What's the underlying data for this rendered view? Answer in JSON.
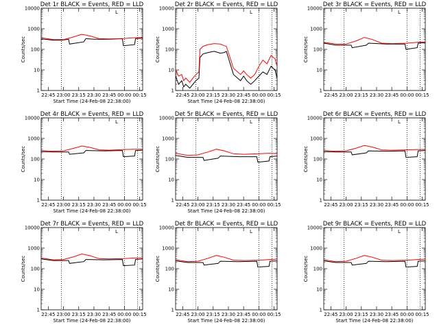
{
  "chart_data": [
    {
      "type": "line",
      "title": "Det 1r BLACK = Events, RED = LLD",
      "xlabel": "Start Time (24-Feb-08 22:38:00)",
      "ylabel": "Counts/sec",
      "y_scale": "log",
      "ylim": [
        1,
        10000
      ],
      "xlim": [
        "22:38",
        "00:18"
      ],
      "x_ticks": [
        "22:45",
        "23:00",
        "23:15",
        "23:30",
        "23:45",
        "00:00",
        "00:15"
      ],
      "y_ticks": [
        "1",
        "10",
        "100",
        "1000",
        "10000"
      ],
      "markers": [
        "22:58",
        "00:00",
        "00:13"
      ],
      "flag_label": "L",
      "series": [
        {
          "color": "#000000",
          "x": [
            "22:38",
            "22:50",
            "22:58",
            "23:05",
            "23:06",
            "23:20",
            "23:22",
            "23:30",
            "23:45",
            "23:58",
            "23:59",
            "00:10",
            "00:11",
            "00:18"
          ],
          "values": [
            320,
            280,
            280,
            310,
            180,
            230,
            330,
            310,
            310,
            330,
            150,
            170,
            330,
            350
          ]
        },
        {
          "color": "#ff0000",
          "x": [
            "22:38",
            "22:50",
            "23:00",
            "23:10",
            "23:18",
            "23:26",
            "23:35",
            "23:45",
            "00:00",
            "00:10",
            "00:18"
          ],
          "values": [
            370,
            300,
            300,
            400,
            540,
            450,
            330,
            320,
            340,
            370,
            380
          ]
        }
      ]
    },
    {
      "type": "line",
      "title": "Det 2r BLACK = Events, RED = LLD",
      "xlabel": "Start Time (24-Feb-08 22:38:00)",
      "ylabel": "Counts/sec",
      "y_scale": "log",
      "ylim": [
        1,
        10000
      ],
      "xlim": [
        "22:38",
        "00:18"
      ],
      "x_ticks": [
        "22:45",
        "23:00",
        "23:15",
        "23:30",
        "23:45",
        "00:00",
        "00:15"
      ],
      "y_ticks": [
        "1",
        "10",
        "100",
        "1000",
        "10000"
      ],
      "markers": [
        "22:58",
        "00:00",
        "00:13"
      ],
      "flag_label": "L",
      "series": [
        {
          "color": "#000000",
          "x": [
            "22:38",
            "22:41",
            "22:44",
            "22:46",
            "22:48",
            "22:52",
            "22:55",
            "22:58",
            "23:01",
            "23:02",
            "23:05",
            "23:10",
            "23:16",
            "23:22",
            "23:26",
            "23:28",
            "23:35",
            "23:42",
            "23:45",
            "23:48",
            "23:52",
            "23:56",
            "24:00",
            "24:04",
            "24:08",
            "24:12",
            "24:16",
            "24:18"
          ],
          "values": [
            5,
            2,
            3,
            1.5,
            2,
            1.3,
            2,
            3,
            4,
            40,
            60,
            70,
            80,
            65,
            70,
            80,
            6,
            3,
            5,
            3,
            2,
            3,
            5,
            8,
            6,
            15,
            10,
            4
          ]
        },
        {
          "color": "#ff0000",
          "x": [
            "22:38",
            "22:41",
            "22:44",
            "22:46",
            "22:48",
            "22:52",
            "22:55",
            "22:58",
            "23:01",
            "23:02",
            "23:05",
            "23:10",
            "23:16",
            "23:22",
            "23:26",
            "23:28",
            "23:35",
            "23:42",
            "23:45",
            "23:48",
            "23:52",
            "23:56",
            "24:00",
            "24:04",
            "24:08",
            "24:12",
            "24:16",
            "24:18"
          ],
          "values": [
            10,
            5,
            6,
            3,
            4,
            2.5,
            4,
            6,
            8,
            100,
            140,
            170,
            190,
            180,
            150,
            140,
            12,
            6,
            9,
            6,
            4,
            6,
            15,
            30,
            20,
            50,
            35,
            15
          ]
        }
      ]
    },
    {
      "type": "line",
      "title": "Det 3r BLACK = Events, RED = LLD",
      "xlabel": "",
      "ylabel": "Counts/sec",
      "y_scale": "log",
      "ylim": [
        1,
        10000
      ],
      "xlim": [
        "22:38",
        "00:18"
      ],
      "x_ticks": [
        "22:45",
        "23:00",
        "23:15",
        "23:30",
        "23:45",
        "00:00",
        "00:15"
      ],
      "y_ticks": [
        "1",
        "10",
        "100",
        "1000",
        "10000"
      ],
      "markers": [
        "22:58",
        "00:00",
        "00:13"
      ],
      "flag_label": "L",
      "series": [
        {
          "color": "#000000",
          "x": [
            "22:38",
            "22:50",
            "23:05",
            "23:06",
            "23:20",
            "23:22",
            "23:40",
            "23:58",
            "23:59",
            "00:10",
            "00:11",
            "00:18"
          ],
          "values": [
            200,
            160,
            160,
            120,
            160,
            200,
            180,
            180,
            100,
            120,
            200,
            210
          ]
        },
        {
          "color": "#ff0000",
          "x": [
            "22:38",
            "22:50",
            "23:00",
            "23:10",
            "23:18",
            "23:26",
            "23:35",
            "23:45",
            "00:00",
            "00:10",
            "00:18"
          ],
          "values": [
            220,
            180,
            180,
            260,
            380,
            300,
            200,
            190,
            200,
            220,
            230
          ]
        }
      ]
    },
    {
      "type": "line",
      "title": "Det 4r BLACK = Events, RED = LLD",
      "xlabel": "Start Time (24-Feb-08 22:38:00)",
      "ylabel": "Counts/sec",
      "y_scale": "log",
      "ylim": [
        1,
        10000
      ],
      "xlim": [
        "22:38",
        "00:18"
      ],
      "x_ticks": [
        "22:45",
        "23:00",
        "23:15",
        "23:30",
        "23:45",
        "00:00",
        "00:15"
      ],
      "y_ticks": [
        "1",
        "10",
        "100",
        "1000",
        "10000"
      ],
      "markers": [
        "22:58",
        "00:00",
        "00:13"
      ],
      "flag_label": "L",
      "series": [
        {
          "color": "#000000",
          "x": [
            "22:38",
            "22:50",
            "23:05",
            "23:06",
            "23:20",
            "23:22",
            "23:40",
            "23:58",
            "23:59",
            "00:10",
            "00:11",
            "00:18"
          ],
          "values": [
            230,
            220,
            220,
            170,
            200,
            260,
            250,
            260,
            130,
            140,
            260,
            270
          ]
        },
        {
          "color": "#ff0000",
          "x": [
            "22:38",
            "22:50",
            "23:00",
            "23:10",
            "23:18",
            "23:26",
            "23:35",
            "23:45",
            "00:00",
            "00:10",
            "00:18"
          ],
          "values": [
            260,
            240,
            250,
            330,
            430,
            370,
            280,
            270,
            290,
            300,
            300
          ]
        }
      ]
    },
    {
      "type": "line",
      "title": "Det 5r BLACK = Events, RED = LLD",
      "xlabel": "Start Time (24-Feb-08 22:38:00)",
      "ylabel": "Counts/sec",
      "y_scale": "log",
      "ylim": [
        1,
        10000
      ],
      "xlim": [
        "22:38",
        "00:18"
      ],
      "x_ticks": [
        "22:45",
        "23:00",
        "23:15",
        "23:30",
        "23:45",
        "00:00",
        "00:15"
      ],
      "y_ticks": [
        "1",
        "10",
        "100",
        "1000",
        "10000"
      ],
      "markers": [
        "22:58",
        "00:00",
        "00:13"
      ],
      "flag_label": "L",
      "series": [
        {
          "color": "#000000",
          "x": [
            "22:38",
            "22:50",
            "23:05",
            "23:06",
            "23:20",
            "23:22",
            "23:40",
            "23:58",
            "23:59",
            "00:10",
            "00:11",
            "00:18"
          ],
          "values": [
            150,
            120,
            120,
            85,
            110,
            140,
            130,
            130,
            70,
            80,
            130,
            140
          ]
        },
        {
          "color": "#ff0000",
          "x": [
            "22:38",
            "22:50",
            "23:00",
            "23:10",
            "23:18",
            "23:26",
            "23:35",
            "23:45",
            "00:00",
            "00:10",
            "00:18"
          ],
          "values": [
            190,
            150,
            160,
            220,
            300,
            250,
            180,
            170,
            180,
            190,
            180
          ]
        }
      ]
    },
    {
      "type": "line",
      "title": "Det 6r BLACK = Events, RED = LLD",
      "xlabel": "",
      "ylabel": "Counts/sec",
      "y_scale": "log",
      "ylim": [
        1,
        10000
      ],
      "xlim": [
        "22:38",
        "00:18"
      ],
      "x_ticks": [
        "22:45",
        "23:00",
        "23:15",
        "23:30",
        "23:45",
        "00:00",
        "00:15"
      ],
      "y_ticks": [
        "1",
        "10",
        "100",
        "1000",
        "10000"
      ],
      "markers": [
        "22:58",
        "00:00",
        "00:13"
      ],
      "flag_label": "L",
      "series": [
        {
          "color": "#000000",
          "x": [
            "22:38",
            "22:50",
            "23:05",
            "23:06",
            "23:20",
            "23:22",
            "23:40",
            "23:58",
            "23:59",
            "00:10",
            "00:11",
            "00:18"
          ],
          "values": [
            230,
            220,
            220,
            160,
            200,
            250,
            240,
            250,
            120,
            130,
            250,
            260
          ]
        },
        {
          "color": "#ff0000",
          "x": [
            "22:38",
            "22:50",
            "23:00",
            "23:10",
            "23:18",
            "23:26",
            "23:35",
            "23:45",
            "00:00",
            "00:10",
            "00:18"
          ],
          "values": [
            260,
            240,
            250,
            340,
            460,
            380,
            280,
            270,
            280,
            290,
            290
          ]
        }
      ]
    },
    {
      "type": "line",
      "title": "Det 7r BLACK = Events, RED = LLD",
      "xlabel": "Start Time (24-Feb-08 22:38:00)",
      "ylabel": "Counts/sec",
      "y_scale": "log",
      "ylim": [
        1,
        10000
      ],
      "xlim": [
        "22:38",
        "00:18"
      ],
      "x_ticks": [
        "22:45",
        "23:00",
        "23:15",
        "23:30",
        "23:45",
        "00:00",
        "00:15"
      ],
      "y_ticks": [
        "1",
        "10",
        "100",
        "1000",
        "10000"
      ],
      "markers": [
        "22:58",
        "00:00",
        "00:13"
      ],
      "flag_label": "L",
      "series": [
        {
          "color": "#000000",
          "x": [
            "22:38",
            "22:50",
            "23:05",
            "23:06",
            "23:20",
            "23:22",
            "23:40",
            "23:58",
            "23:59",
            "00:10",
            "00:11",
            "00:18"
          ],
          "values": [
            300,
            250,
            250,
            180,
            220,
            280,
            270,
            280,
            140,
            150,
            280,
            300
          ]
        },
        {
          "color": "#ff0000",
          "x": [
            "22:38",
            "22:50",
            "23:00",
            "23:10",
            "23:18",
            "23:26",
            "23:35",
            "23:45",
            "00:00",
            "00:10",
            "00:18"
          ],
          "values": [
            330,
            270,
            280,
            380,
            520,
            430,
            310,
            300,
            310,
            330,
            340
          ]
        }
      ]
    },
    {
      "type": "line",
      "title": "Det 8r BLACK = Events, RED = LLD",
      "xlabel": "Start Time (24-Feb-08 22:38:00)",
      "ylabel": "Counts/sec",
      "y_scale": "log",
      "ylim": [
        1,
        10000
      ],
      "xlim": [
        "22:38",
        "00:18"
      ],
      "x_ticks": [
        "22:45",
        "23:00",
        "23:15",
        "23:30",
        "23:45",
        "00:00",
        "00:15"
      ],
      "y_ticks": [
        "1",
        "10",
        "100",
        "1000",
        "10000"
      ],
      "markers": [
        "22:58",
        "00:00",
        "00:13"
      ],
      "flag_label": "L",
      "series": [
        {
          "color": "#000000",
          "x": [
            "22:38",
            "22:50",
            "23:05",
            "23:06",
            "23:20",
            "23:22",
            "23:40",
            "23:58",
            "23:59",
            "00:10",
            "00:11",
            "00:18"
          ],
          "values": [
            240,
            200,
            200,
            150,
            180,
            230,
            220,
            230,
            120,
            130,
            230,
            240
          ]
        },
        {
          "color": "#ff0000",
          "x": [
            "22:38",
            "22:50",
            "23:00",
            "23:10",
            "23:18",
            "23:26",
            "23:35",
            "23:45",
            "00:00",
            "00:10",
            "00:18"
          ],
          "values": [
            270,
            220,
            230,
            320,
            440,
            360,
            260,
            250,
            260,
            280,
            290
          ]
        }
      ]
    },
    {
      "type": "line",
      "title": "Det 9r BLACK = Events, RED = LLD",
      "xlabel": "Start Time (24-Feb-08 22:38:00)",
      "ylabel": "Counts/sec",
      "y_scale": "log",
      "ylim": [
        1,
        10000
      ],
      "xlim": [
        "22:38",
        "00:18"
      ],
      "x_ticks": [
        "22:45",
        "23:00",
        "23:15",
        "23:30",
        "23:45",
        "00:00",
        "00:15"
      ],
      "y_ticks": [
        "1",
        "10",
        "100",
        "1000",
        "10000"
      ],
      "markers": [
        "22:58",
        "00:00",
        "00:13"
      ],
      "flag_label": "L",
      "series": [
        {
          "color": "#000000",
          "x": [
            "22:38",
            "22:50",
            "23:05",
            "23:06",
            "23:20",
            "23:22",
            "23:40",
            "23:58",
            "23:59",
            "00:10",
            "00:11",
            "00:18"
          ],
          "values": [
            240,
            200,
            200,
            150,
            180,
            230,
            220,
            230,
            120,
            130,
            230,
            240
          ]
        },
        {
          "color": "#ff0000",
          "x": [
            "22:38",
            "22:50",
            "23:00",
            "23:10",
            "23:18",
            "23:26",
            "23:35",
            "23:45",
            "00:00",
            "00:10",
            "00:18"
          ],
          "values": [
            270,
            220,
            230,
            320,
            440,
            360,
            260,
            250,
            260,
            280,
            290
          ]
        }
      ]
    }
  ]
}
